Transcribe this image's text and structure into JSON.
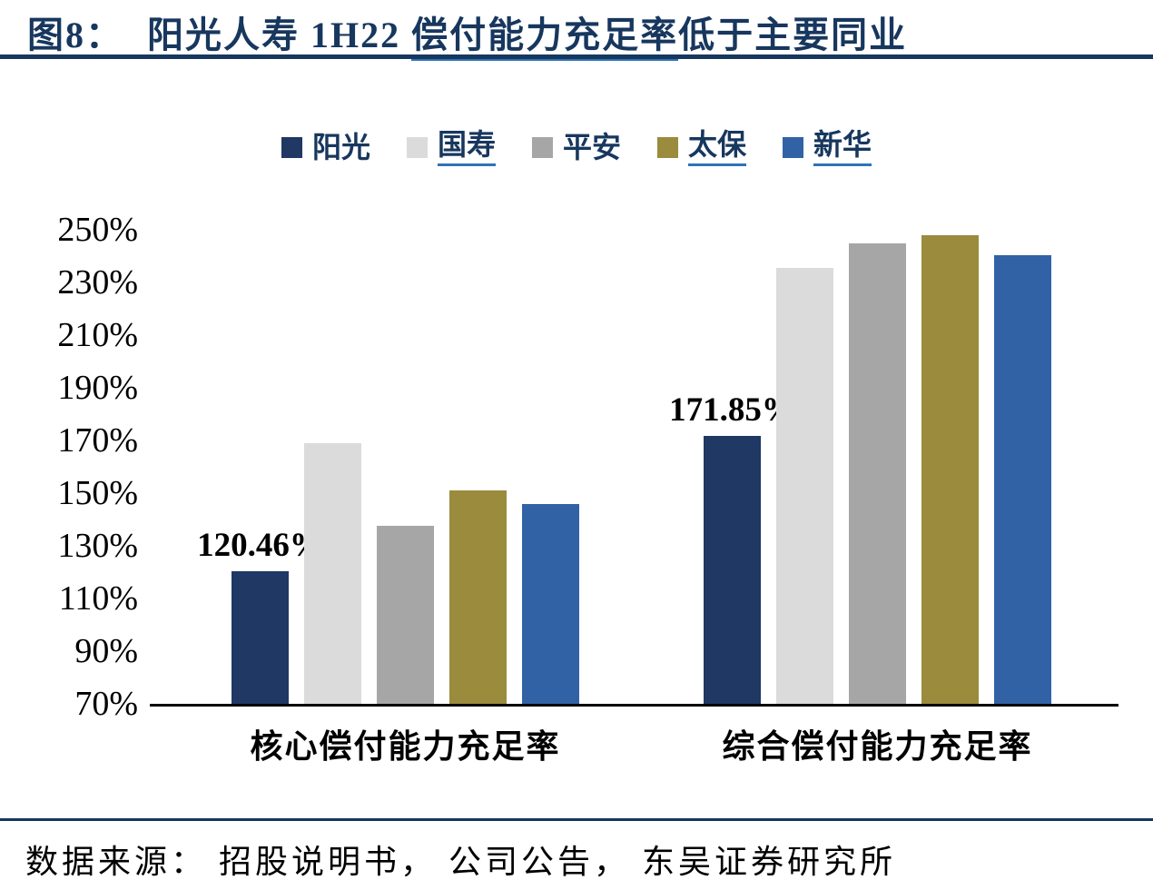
{
  "title": {
    "prefix": "图8：",
    "pre_underline": "阳光人寿 1H22 ",
    "underlined": "偿付能力充足率",
    "suffix": "低于主要同业"
  },
  "footer": {
    "source": "数据来源：  招股说明书，  公司公告，  东吴证券研究所"
  },
  "colors": {
    "title_navy": "#17375E",
    "underline_blue": "#2E74B5",
    "axis_black": "#000000",
    "background": "#FFFFFF"
  },
  "chart_data": {
    "type": "bar",
    "title": "阳光人寿 1H22 偿付能力充足率低于主要同业",
    "categories": [
      "核心偿付能力充足率",
      "综合偿付能力充足率"
    ],
    "series": [
      {
        "name": "阳光",
        "color": "#1F3864",
        "legend_underline": false,
        "values": [
          120.46,
          171.85
        ],
        "data_labels": [
          "120.46%",
          "171.85%"
        ]
      },
      {
        "name": "国寿",
        "color": "#DBDBDB",
        "legend_underline": true,
        "values": [
          169,
          235.5
        ]
      },
      {
        "name": "平安",
        "color": "#A6A6A6",
        "legend_underline": false,
        "values": [
          137.5,
          245
        ]
      },
      {
        "name": "太保",
        "color": "#9A8B3D",
        "legend_underline": true,
        "values": [
          151,
          248
        ]
      },
      {
        "name": "新华",
        "color": "#3262A6",
        "legend_underline": true,
        "values": [
          146,
          240.5
        ]
      }
    ],
    "xlabel": "",
    "ylabel": "",
    "ylim": [
      70,
      250
    ],
    "yticks": [
      "70%",
      "90%",
      "110%",
      "130%",
      "150%",
      "170%",
      "190%",
      "210%",
      "230%",
      "250%"
    ],
    "grid": false,
    "legend_position": "top"
  }
}
